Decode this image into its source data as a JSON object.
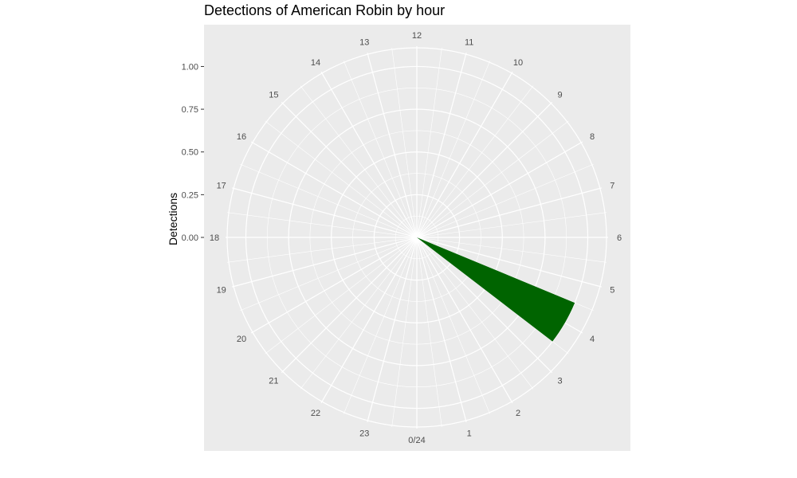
{
  "chart_data": {
    "type": "bar",
    "coord": "polar",
    "title": "Detections of American Robin by hour",
    "ylabel": "Detections",
    "xlabel": "",
    "categories": [
      "0/24",
      "1",
      "2",
      "3",
      "4",
      "5",
      "6",
      "7",
      "8",
      "9",
      "10",
      "11",
      "12",
      "13",
      "14",
      "15",
      "16",
      "17",
      "18",
      "19",
      "20",
      "21",
      "22",
      "23"
    ],
    "values": [
      0,
      0,
      0,
      0,
      1,
      0,
      0,
      0,
      0,
      0,
      0,
      0,
      0,
      0,
      0,
      0,
      0,
      0,
      0,
      0,
      0,
      0,
      0,
      0
    ],
    "ylim": [
      0,
      1.1
    ],
    "y_ticks": [
      "0.00",
      "0.25",
      "0.50",
      "0.75",
      "1.00"
    ],
    "y_tick_values": [
      0,
      0.25,
      0.5,
      0.75,
      1.0
    ],
    "bar_color": "#006400",
    "panel_background": "#ebebeb",
    "grid_color": "#ffffff",
    "grid": true
  }
}
